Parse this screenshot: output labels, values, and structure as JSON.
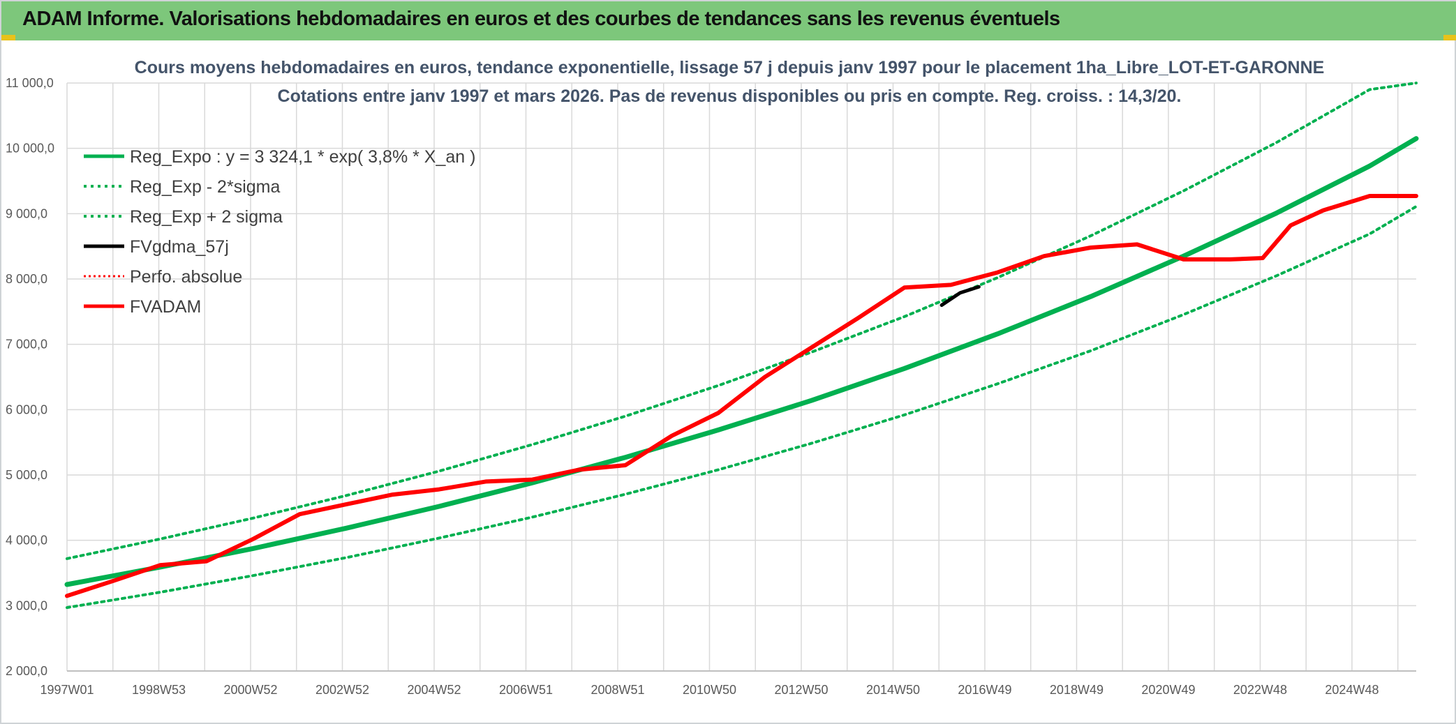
{
  "header": {
    "title": "ADAM Informe. Valorisations hebdomadaires en euros et des courbes de tendances sans les revenus éventuels"
  },
  "colors": {
    "banner": "#7dc77b",
    "green": "#00b050",
    "red": "#ff0000",
    "black": "#000000",
    "grid": "#d9d9d9"
  },
  "chart_data": {
    "type": "line",
    "title_line1": "Cours moyens hebdomadaires en euros, tendance exponentielle, lissage 57 j depuis janv 1997 pour le placement 1ha_Libre_LOT-ET-GARONNE",
    "title_line2": "Cotations entre janv 1997 et mars 2026. Pas de revenus disponibles ou pris en compte. Reg. croiss. : 14,3/20.",
    "xlabel": "",
    "ylabel": "",
    "ylim": [
      2000,
      11000
    ],
    "xlim": [
      1997.0,
      2026.0
    ],
    "grid": true,
    "legend_position": "top-left",
    "y_ticks": [
      "2 000,0",
      "3 000,0",
      "4 000,0",
      "5 000,0",
      "6 000,0",
      "7 000,0",
      "8 000,0",
      "9 000,0",
      "10 000,0",
      "11 000,0"
    ],
    "x_ticks": [
      "1997W01",
      "1998W53",
      "2000W52",
      "2002W52",
      "2004W52",
      "2006W51",
      "2008W51",
      "2010W50",
      "2012W50",
      "2014W50",
      "2016W49",
      "2018W49",
      "2020W49",
      "2022W48",
      "2024W48"
    ],
    "series": [
      {
        "name": "Reg_Expo : y = 3 324,1 * exp( 3,8% *  X_an )",
        "style": "solid-green",
        "x": [
          1997,
          1999,
          2001,
          2003,
          2005,
          2007,
          2009,
          2011,
          2013,
          2015,
          2017,
          2019,
          2021,
          2023,
          2025,
          2026
        ],
        "values": [
          3324,
          3590,
          3875,
          4185,
          4520,
          4880,
          5270,
          5690,
          6140,
          6630,
          7160,
          7730,
          8350,
          9010,
          9730,
          10150
        ]
      },
      {
        "name": "Reg_Exp - 2*sigma",
        "style": "dotted-green",
        "x": [
          1997,
          1999,
          2001,
          2003,
          2005,
          2007,
          2009,
          2011,
          2013,
          2015,
          2017,
          2019,
          2021,
          2023,
          2025,
          2026
        ],
        "values": [
          2970,
          3205,
          3460,
          3735,
          4035,
          4355,
          4705,
          5080,
          5485,
          5920,
          6395,
          6900,
          7455,
          8050,
          8690,
          9110
        ]
      },
      {
        "name": "Reg_Exp + 2 sigma",
        "style": "dotted-green",
        "x": [
          1997,
          1999,
          2001,
          2003,
          2005,
          2007,
          2009,
          2011,
          2013,
          2015,
          2017,
          2019,
          2021,
          2023,
          2025,
          2026
        ],
        "values": [
          3720,
          4020,
          4340,
          4685,
          5060,
          5465,
          5900,
          6370,
          6880,
          7425,
          8020,
          8660,
          9350,
          10090,
          10900,
          11000
        ]
      },
      {
        "name": "FVgdma_57j",
        "style": "solid-black",
        "x": [
          2015.8,
          2016.2,
          2016.6
        ],
        "values": [
          7600,
          7790,
          7880
        ]
      },
      {
        "name": "Perfo. absolue",
        "style": "dotted-red",
        "x": [],
        "values": []
      },
      {
        "name": "FVADAM",
        "style": "solid-red",
        "x": [
          1997,
          1998,
          1999,
          2000,
          2001,
          2002,
          2003,
          2004,
          2005,
          2006,
          2007,
          2008,
          2009,
          2010,
          2011,
          2012,
          2013,
          2014,
          2015,
          2016,
          2017,
          2018,
          2019,
          2020,
          2021,
          2022,
          2022.7,
          2023.3,
          2024,
          2025,
          2026
        ],
        "values": [
          3150,
          3380,
          3620,
          3680,
          4020,
          4400,
          4550,
          4700,
          4780,
          4900,
          4930,
          5080,
          5150,
          5600,
          5950,
          6500,
          6950,
          7400,
          7870,
          7910,
          8100,
          8350,
          8480,
          8530,
          8300,
          8300,
          8320,
          8820,
          9050,
          9270,
          9270
        ]
      }
    ]
  }
}
